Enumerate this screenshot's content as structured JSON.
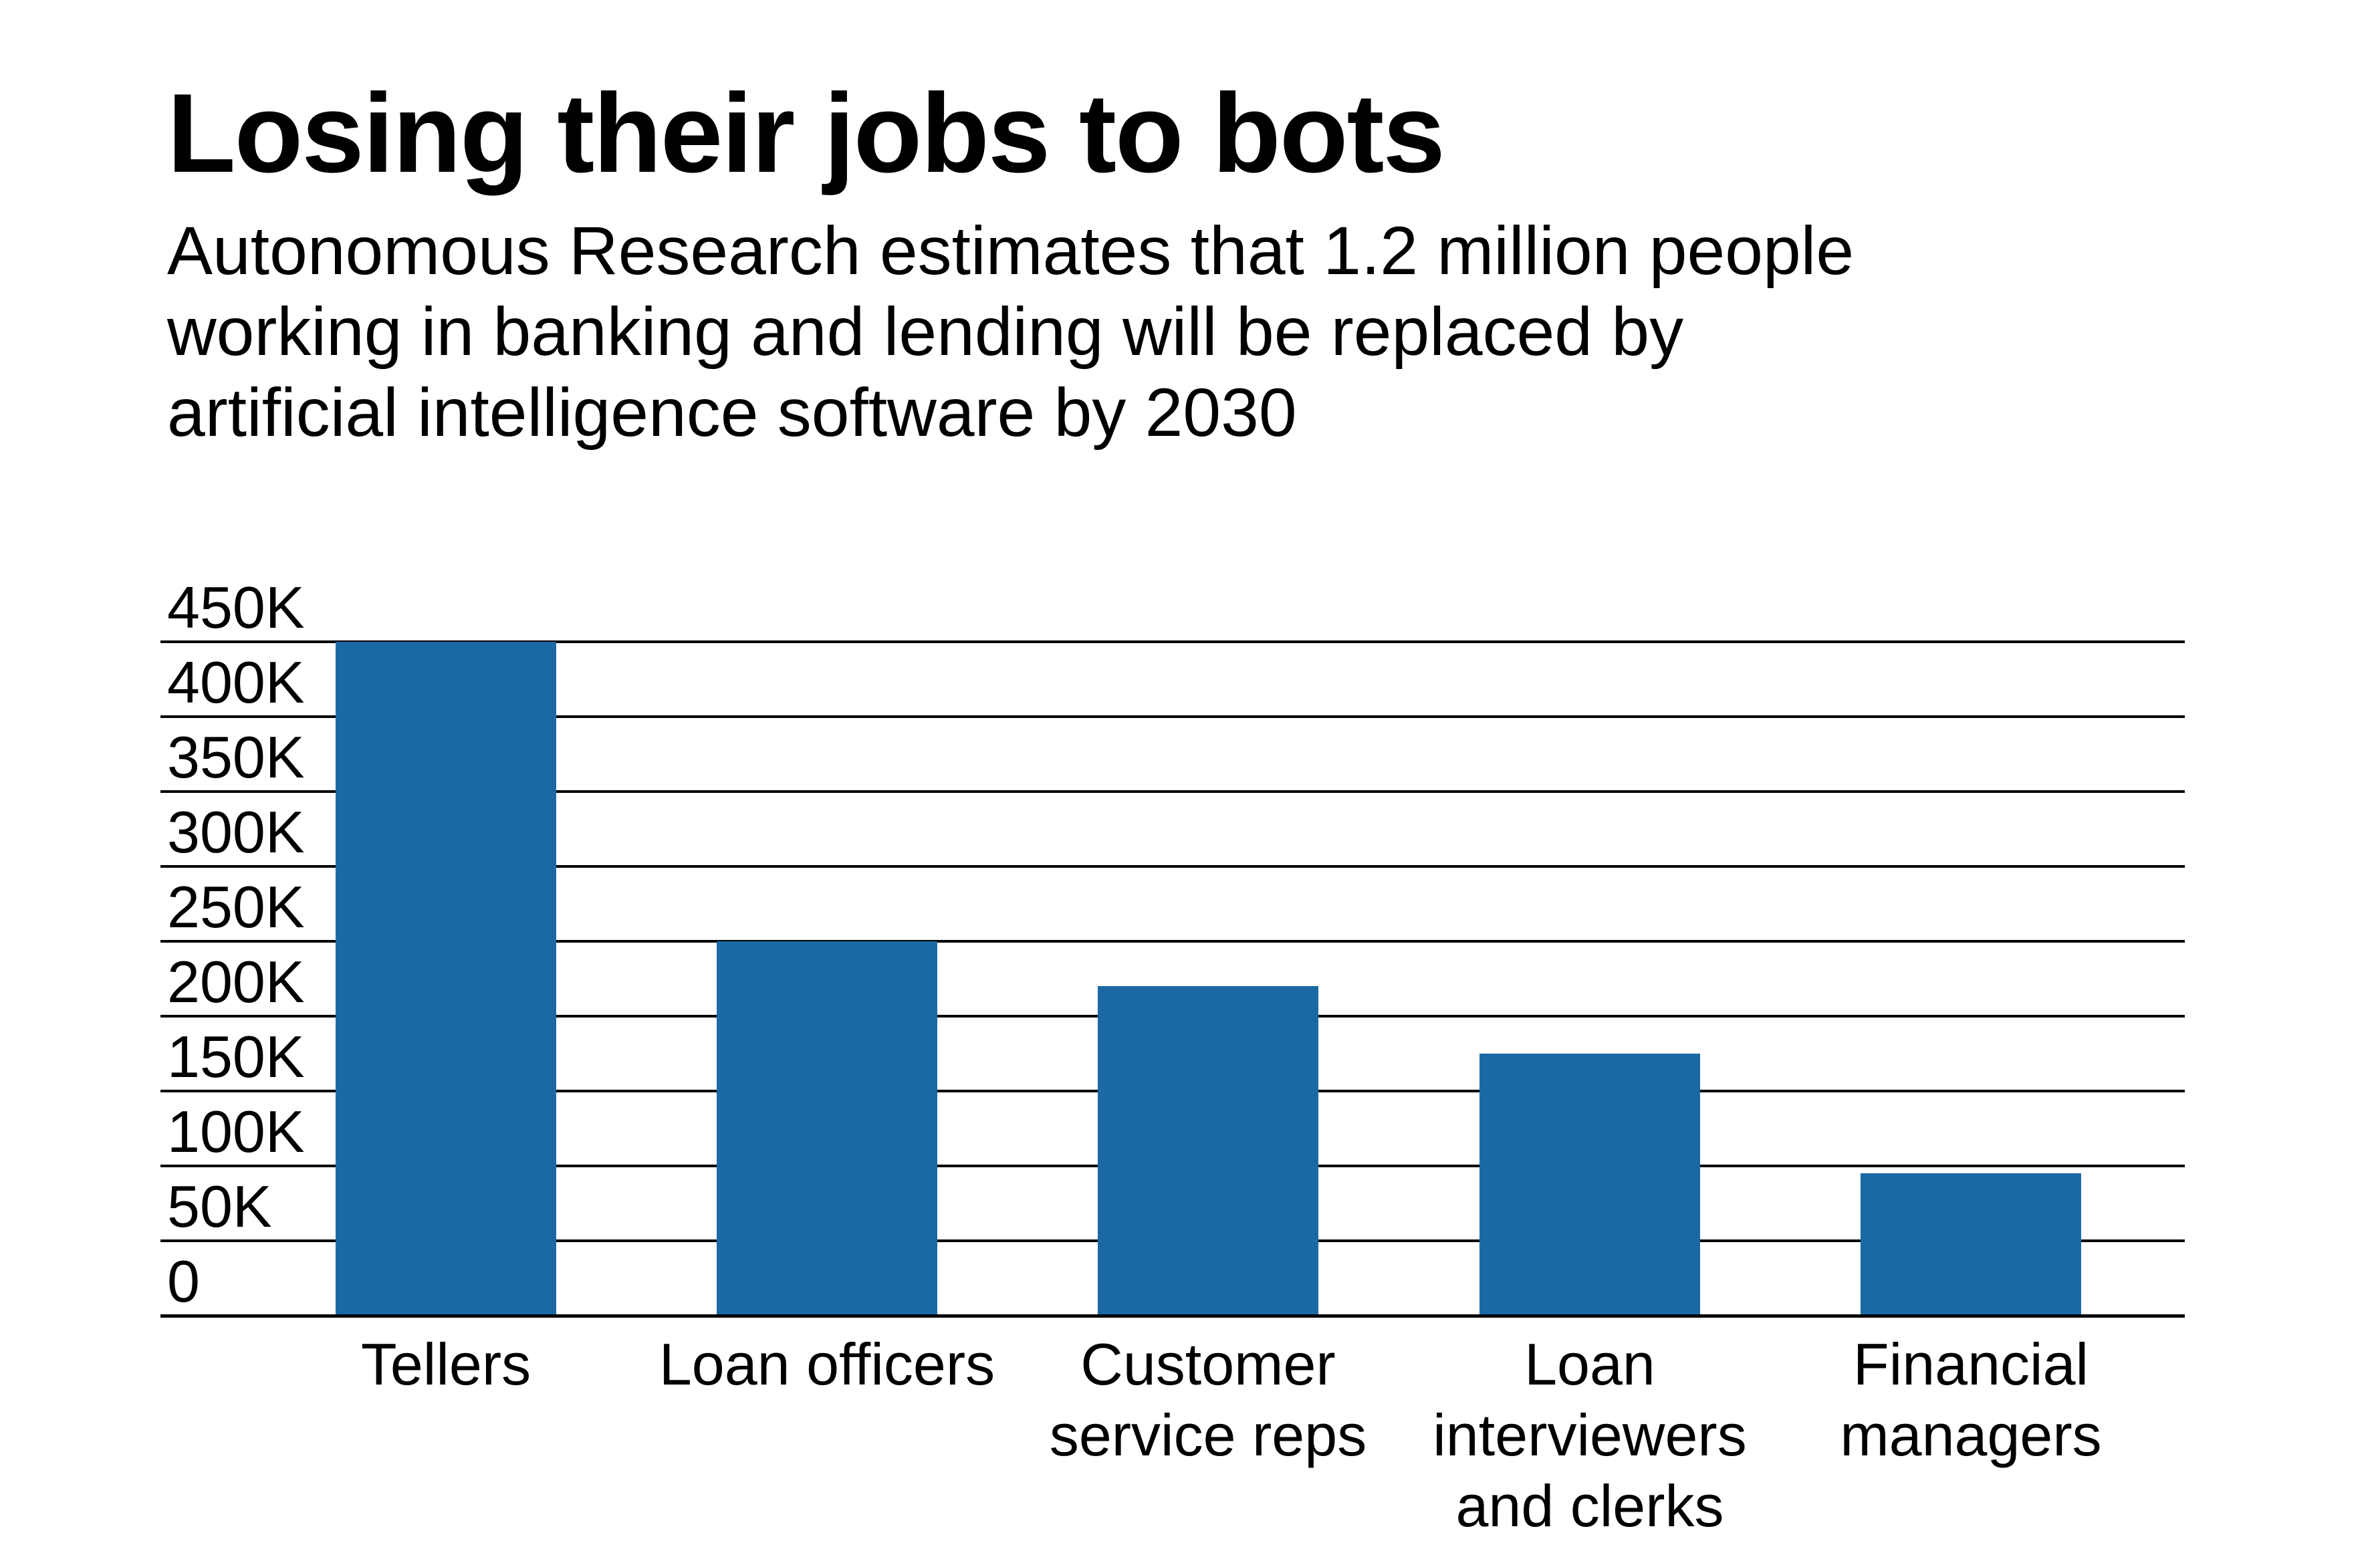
{
  "page": {
    "background": "#ffffff"
  },
  "header": {
    "title": "Losing their jobs to bots",
    "subtitle_lines": [
      "Autonomous Research estimates that 1.2 million people",
      "working in banking and lending will be replaced by",
      "artificial intelligence software by 2030"
    ]
  },
  "chart_data": {
    "type": "bar",
    "title": "Losing their jobs to bots",
    "subtitle": "Autonomous Research estimates that 1.2 million people working in banking and lending will be replaced by artificial intelligence software by 2030",
    "categories": [
      "Tellers",
      "Loan officers",
      "Customer service reps",
      "Loan interviewers and clerks",
      "Financial managers"
    ],
    "category_label_lines": [
      [
        "Tellers"
      ],
      [
        "Loan officers"
      ],
      [
        "Customer",
        "service reps"
      ],
      [
        "Loan",
        "interviewers",
        "and clerks"
      ],
      [
        "Financial",
        "managers"
      ]
    ],
    "values": [
      450000,
      250000,
      220000,
      175000,
      95000
    ],
    "xlabel": "",
    "ylabel": "",
    "ylim": [
      0,
      450000
    ],
    "y_ticks": [
      {
        "value": 0,
        "label": "0"
      },
      {
        "value": 50000,
        "label": "50K"
      },
      {
        "value": 100000,
        "label": "100K"
      },
      {
        "value": 150000,
        "label": "150K"
      },
      {
        "value": 200000,
        "label": "200K"
      },
      {
        "value": 250000,
        "label": "250K"
      },
      {
        "value": 300000,
        "label": "300K"
      },
      {
        "value": 350000,
        "label": "350K"
      },
      {
        "value": 400000,
        "label": "400K"
      },
      {
        "value": 450000,
        "label": "450K"
      }
    ],
    "grid": "horizontal",
    "legend_position": "none",
    "bar_color": "#1b69a4",
    "gridline_color": "#000000",
    "text_color": "#000000",
    "background_color": "#ffffff"
  }
}
